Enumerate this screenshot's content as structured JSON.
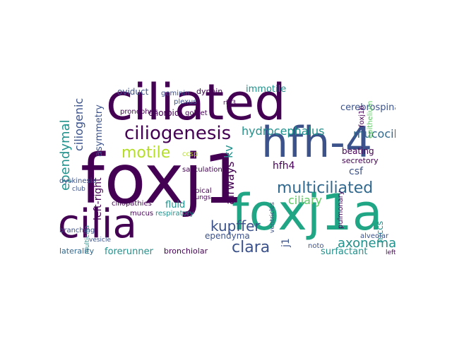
{
  "palette": {
    "deep": "#440154",
    "indigo": "#3b528b",
    "teal": "#21918c",
    "green": "#5ec962",
    "yellow": "#c7e020"
  },
  "words": {
    "foxj1": "foxj1",
    "ciliated": "ciliated",
    "hfh4": "hfh-4",
    "foxj1a": "foxj1a",
    "cilia": "cilia",
    "ciliogenesis": "ciliogenesis",
    "multiciliated": "multiciliated",
    "motile": "motile",
    "ependymal": "ependymal",
    "ciliogenic": "ciliogenic",
    "hydrocephalus": "hydrocephalus",
    "mucociliary": "mucociliary",
    "clara": "clara",
    "axonemal": "axonemal",
    "kupffer": "kupffer",
    "left_right": "left-right",
    "ciliary": "ciliary",
    "airways": "airways",
    "kv": "kv",
    "asymmetry": "asymmetry",
    "immotile": "immotile",
    "cerebrospinal": "cerebrospinal",
    "oviduct": "oviduct",
    "dynein": "dynein",
    "geminin": "geminin",
    "choroid": "choroid",
    "pronephric": "pronephric",
    "goblet": "goblet",
    "plexus": "plexus",
    "hfh4_small": "hfh4",
    "csf": "csf",
    "beating": "beating",
    "secretory": "secretory",
    "mccs": "mccs",
    "surfactant": "surfactant",
    "ependyma": "ependyma",
    "forerunner": "forerunner",
    "bronchiolar": "bronchiolar",
    "laterality": "laterality",
    "fluid": "fluid",
    "ciliopathies": "ciliopathies",
    "mucus": "mucus",
    "respiratory": "respiratory",
    "branching": "branching",
    "vesicle": "vesicle",
    "dyskinesia": "dyskinesia",
    "club": "club",
    "sacculation": "sacculation",
    "apical": "apical",
    "lungs": "lungs",
    "ccsp": "ccsp",
    "alveolar": "alveolar",
    "leftward": "leftward",
    "noto": "noto",
    "foxj1b": "foxj1b",
    "epithelium": "epithelium",
    "pulmonary": "pulmonary",
    "ventricles": "ventricles",
    "rfx3": "rfx3",
    "j1": "j1",
    "multicilia": "multicilia"
  }
}
